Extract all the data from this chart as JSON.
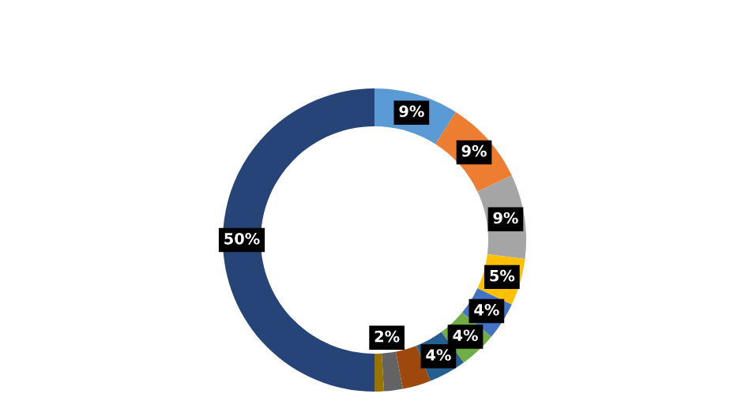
{
  "chart_data": {
    "type": "donut",
    "categories": [
      null,
      null,
      null,
      null,
      null,
      null,
      null,
      null,
      null,
      null,
      null
    ],
    "values": [
      9,
      9,
      9,
      5,
      4,
      4,
      4,
      3,
      2,
      1,
      50
    ],
    "colors": [
      "#5b9bd5",
      "#ed7d31",
      "#a5a5a5",
      "#ffc000",
      "#4472c4",
      "#70ad47",
      "#255e91",
      "#9e480e",
      "#636363",
      "#997300",
      "#264478"
    ],
    "value_labels": [
      "9%",
      "9%",
      "9%",
      "5%",
      "4%",
      "4%",
      "4%",
      null,
      "2%",
      null,
      "50%"
    ]
  }
}
